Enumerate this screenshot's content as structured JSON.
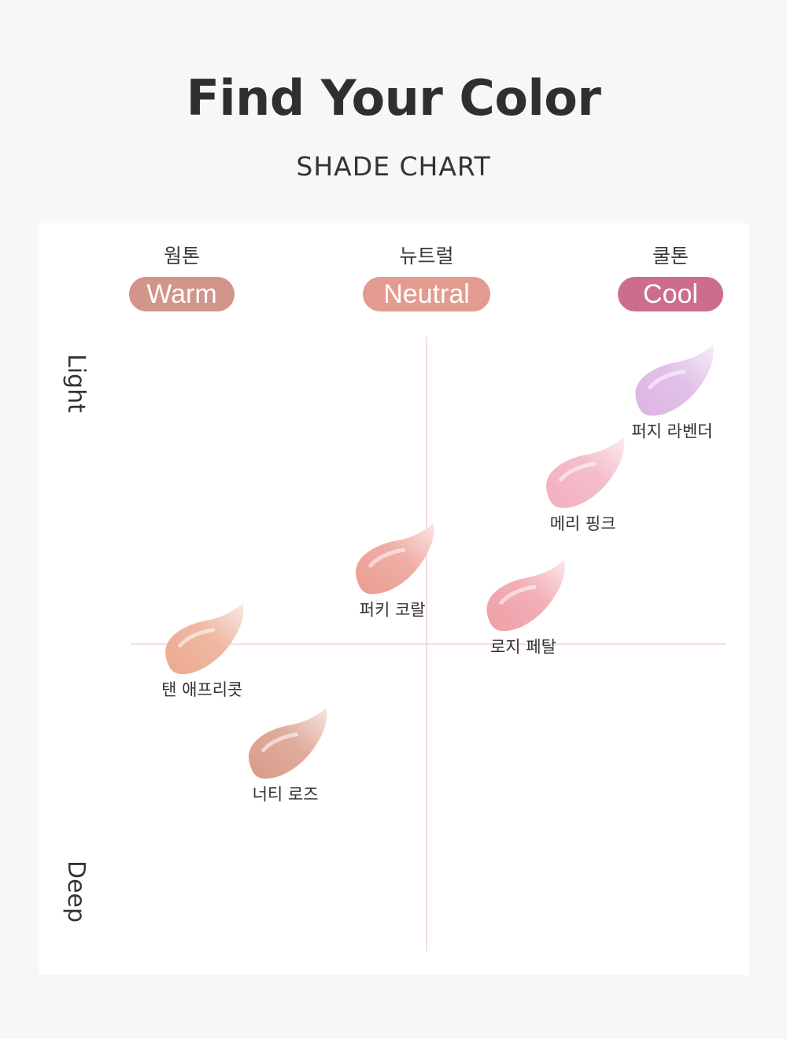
{
  "header": {
    "title": "Find Your Color",
    "subtitle": "SHADE CHART"
  },
  "tones": [
    {
      "ko": "웜톤",
      "en": "Warm",
      "color": "#d19589"
    },
    {
      "ko": "뉴트럴",
      "en": "Neutral",
      "color": "#e39b90"
    },
    {
      "ko": "쿨톤",
      "en": "Cool",
      "color": "#cd6d8d"
    }
  ],
  "axes": {
    "top": "Light",
    "bottom": "Deep"
  },
  "chart_data": {
    "type": "scatter",
    "x_axis": "tone (warm → neutral → cool)",
    "y_axis": "depth (light → deep)",
    "points": [
      {
        "name": "퍼지 라벤더",
        "tone": 0.91,
        "depth": 0.08,
        "color": "#dcb4e3"
      },
      {
        "name": "메리 핑크",
        "tone": 0.76,
        "depth": 0.23,
        "color": "#f2afbe"
      },
      {
        "name": "퍼키 코랄",
        "tone": 0.44,
        "depth": 0.37,
        "color": "#eb9c91"
      },
      {
        "name": "로지 페탈",
        "tone": 0.66,
        "depth": 0.43,
        "color": "#ef9ea6"
      },
      {
        "name": "탠 애프리콧",
        "tone": 0.12,
        "depth": 0.5,
        "color": "#eca88e"
      },
      {
        "name": "너티 로즈",
        "tone": 0.26,
        "depth": 0.67,
        "color": "#d99a88"
      }
    ]
  }
}
